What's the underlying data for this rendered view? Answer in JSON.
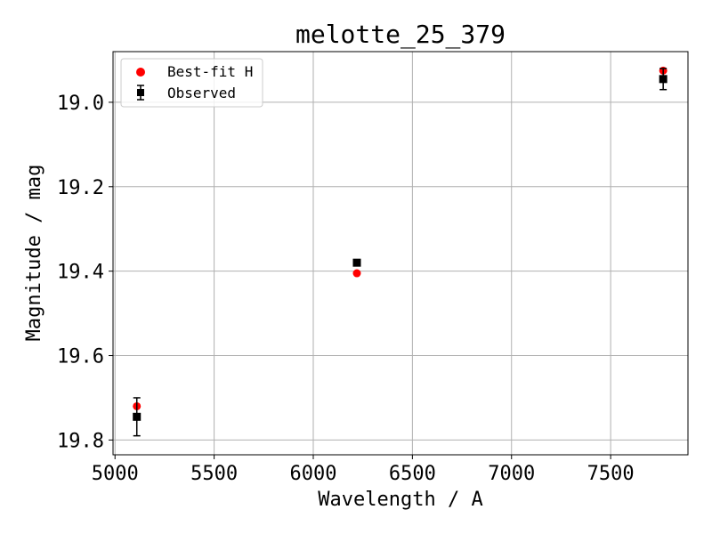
{
  "chart_data": {
    "type": "scatter",
    "title": "melotte_25_379",
    "xlabel": "Wavelength / A",
    "ylabel": "Magnitude / mag",
    "xlim": [
      4990,
      7890
    ],
    "ylim": [
      19.835,
      18.88
    ],
    "y_inverted": true,
    "grid": true,
    "legend_position": "top-left",
    "x_ticks": [
      5000,
      5500,
      6000,
      6500,
      7000,
      7500
    ],
    "x_tick_labels": [
      "5000",
      "5500",
      "6000",
      "6500",
      "7000",
      "7500"
    ],
    "y_ticks": [
      19.0,
      19.2,
      19.4,
      19.6,
      19.8
    ],
    "y_tick_labels": [
      "19.0",
      "19.2",
      "19.4",
      "19.6",
      "19.8"
    ],
    "series": [
      {
        "name": "Best-fit H",
        "marker": "circle",
        "color": "#ff0000",
        "x": [
          5110,
          6220,
          7765
        ],
        "y": [
          19.72,
          19.405,
          18.925
        ]
      },
      {
        "name": "Observed",
        "marker": "square",
        "color": "#000000",
        "x": [
          5110,
          6220,
          7765
        ],
        "y": [
          19.745,
          19.38,
          18.945
        ],
        "yerr": [
          0.045,
          0.0,
          0.025
        ]
      }
    ]
  }
}
